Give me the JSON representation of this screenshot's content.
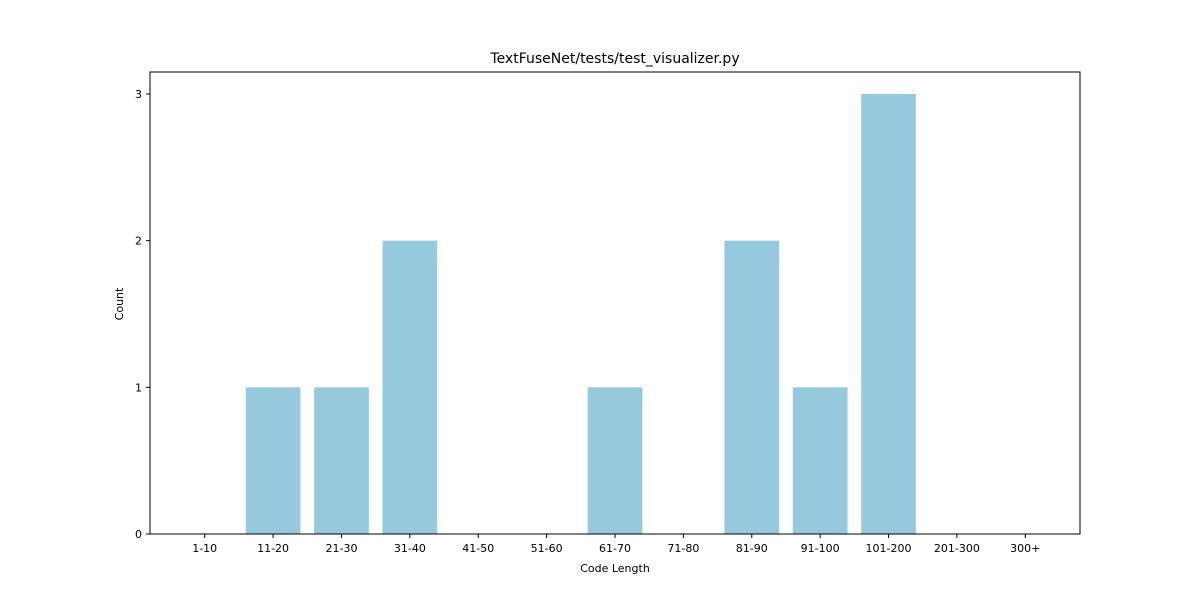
{
  "chart_data": {
    "type": "bar",
    "title": "TextFuseNet/tests/test_visualizer.py",
    "xlabel": "Code Length",
    "ylabel": "Count",
    "categories": [
      "1-10",
      "11-20",
      "21-30",
      "31-40",
      "41-50",
      "51-60",
      "61-70",
      "71-80",
      "81-90",
      "91-100",
      "101-200",
      "201-300",
      "300+"
    ],
    "values": [
      0,
      1,
      1,
      2,
      0,
      0,
      1,
      0,
      2,
      1,
      3,
      0,
      0
    ],
    "yticks": [
      "0",
      "1",
      "2",
      "3"
    ],
    "ylim": [
      0,
      3.15
    ],
    "bar_color": "#96c9dd",
    "grid": false,
    "legend": "none"
  }
}
